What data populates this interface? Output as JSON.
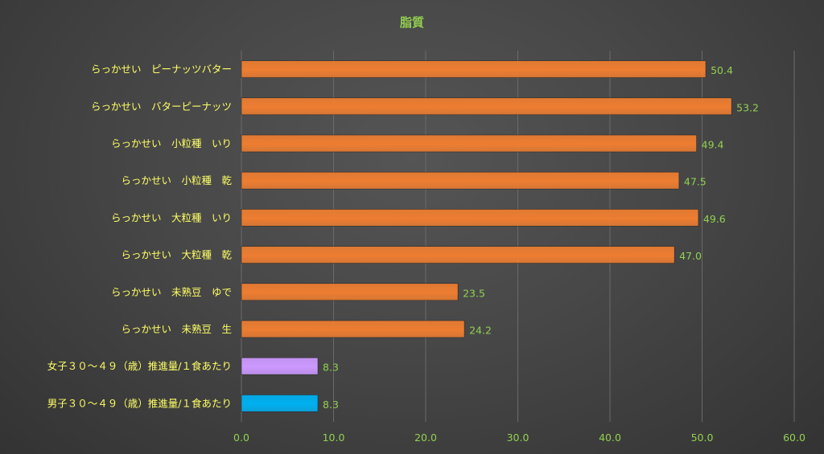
{
  "chart_data": {
    "type": "bar",
    "orientation": "horizontal",
    "title": "脂質",
    "categories": [
      "らっかせい　ピーナッツバター",
      "らっかせい　バターピーナッツ",
      "らっかせい　小粒種　いり",
      "らっかせい　小粒種　乾",
      "らっかせい　大粒種　いり",
      "らっかせい　大粒種　乾",
      "らっかせい　未熟豆　ゆで",
      "らっかせい　未熟豆　生",
      "女子３０〜４９（歳）推進量/１食あたり",
      "男子３０〜４９（歳）推進量/１食あたり"
    ],
    "values": [
      50.4,
      53.2,
      49.4,
      47.5,
      49.6,
      47.0,
      23.5,
      24.2,
      8.3,
      8.3
    ],
    "value_labels": [
      "50.4",
      "53.2",
      "49.4",
      "47.5",
      "49.6",
      "47.0",
      "23.5",
      "24.2",
      "8.3",
      "8.3"
    ],
    "bar_colors": [
      "#ed7d31",
      "#ed7d31",
      "#ed7d31",
      "#ed7d31",
      "#ed7d31",
      "#ed7d31",
      "#ed7d31",
      "#ed7d31",
      "#cc99ff",
      "#00b0f0"
    ],
    "xlim": [
      0,
      60
    ],
    "xticks": [
      "0.0",
      "10.0",
      "20.0",
      "30.0",
      "40.0",
      "50.0",
      "60.0"
    ],
    "grid": true,
    "legend": "none"
  }
}
